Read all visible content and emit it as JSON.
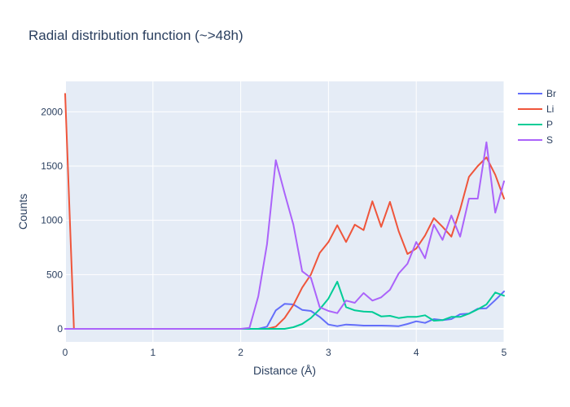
{
  "chart_data": {
    "type": "line",
    "title": "Radial distribution function (~>48h)",
    "xlabel": "Distance (Å)",
    "ylabel": "Counts",
    "xlim": [
      0,
      5
    ],
    "ylim": [
      -120,
      2280
    ],
    "x_ticks": [
      0,
      1,
      2,
      3,
      4,
      5
    ],
    "y_ticks": [
      0,
      500,
      1000,
      1500,
      2000
    ],
    "grid": true,
    "legend_position": "top-right",
    "series": [
      {
        "name": "Br",
        "color": "#636efa",
        "points": [
          [
            0,
            0
          ],
          [
            0.1,
            0
          ],
          [
            1,
            0
          ],
          [
            2,
            0
          ],
          [
            2.1,
            0
          ],
          [
            2.2,
            0
          ],
          [
            2.3,
            20
          ],
          [
            2.4,
            170
          ],
          [
            2.5,
            230
          ],
          [
            2.6,
            225
          ],
          [
            2.7,
            175
          ],
          [
            2.8,
            165
          ],
          [
            2.9,
            110
          ],
          [
            3.0,
            40
          ],
          [
            3.1,
            25
          ],
          [
            3.2,
            40
          ],
          [
            3.3,
            35
          ],
          [
            3.4,
            30
          ],
          [
            3.5,
            30
          ],
          [
            3.6,
            30
          ],
          [
            3.7,
            28
          ],
          [
            3.8,
            25
          ],
          [
            3.9,
            45
          ],
          [
            4.0,
            70
          ],
          [
            4.1,
            55
          ],
          [
            4.2,
            90
          ],
          [
            4.3,
            80
          ],
          [
            4.4,
            90
          ],
          [
            4.5,
            135
          ],
          [
            4.6,
            140
          ],
          [
            4.7,
            185
          ],
          [
            4.8,
            190
          ],
          [
            4.9,
            265
          ],
          [
            5.0,
            345
          ]
        ]
      },
      {
        "name": "Li",
        "color": "#ef553b",
        "points": [
          [
            0,
            2165
          ],
          [
            0.1,
            0
          ],
          [
            1,
            0
          ],
          [
            2,
            0
          ],
          [
            2.1,
            0
          ],
          [
            2.2,
            0
          ],
          [
            2.3,
            0
          ],
          [
            2.4,
            20
          ],
          [
            2.5,
            100
          ],
          [
            2.6,
            220
          ],
          [
            2.7,
            380
          ],
          [
            2.8,
            500
          ],
          [
            2.9,
            700
          ],
          [
            3.0,
            800
          ],
          [
            3.1,
            955
          ],
          [
            3.2,
            800
          ],
          [
            3.3,
            960
          ],
          [
            3.4,
            910
          ],
          [
            3.5,
            1175
          ],
          [
            3.6,
            940
          ],
          [
            3.7,
            1170
          ],
          [
            3.8,
            900
          ],
          [
            3.9,
            690
          ],
          [
            4.0,
            740
          ],
          [
            4.1,
            860
          ],
          [
            4.2,
            1020
          ],
          [
            4.3,
            940
          ],
          [
            4.4,
            850
          ],
          [
            4.5,
            1100
          ],
          [
            4.6,
            1400
          ],
          [
            4.7,
            1500
          ],
          [
            4.8,
            1580
          ],
          [
            4.9,
            1420
          ],
          [
            5.0,
            1200
          ]
        ]
      },
      {
        "name": "P",
        "color": "#00cc96",
        "points": [
          [
            0,
            0
          ],
          [
            0.1,
            0
          ],
          [
            1,
            0
          ],
          [
            2,
            0
          ],
          [
            2.1,
            0
          ],
          [
            2.2,
            0
          ],
          [
            2.3,
            0
          ],
          [
            2.4,
            0
          ],
          [
            2.5,
            0
          ],
          [
            2.6,
            15
          ],
          [
            2.7,
            45
          ],
          [
            2.8,
            100
          ],
          [
            2.9,
            180
          ],
          [
            3.0,
            280
          ],
          [
            3.1,
            435
          ],
          [
            3.2,
            200
          ],
          [
            3.3,
            170
          ],
          [
            3.4,
            160
          ],
          [
            3.5,
            155
          ],
          [
            3.6,
            115
          ],
          [
            3.7,
            120
          ],
          [
            3.8,
            100
          ],
          [
            3.9,
            110
          ],
          [
            4.0,
            110
          ],
          [
            4.1,
            125
          ],
          [
            4.2,
            75
          ],
          [
            4.3,
            80
          ],
          [
            4.4,
            110
          ],
          [
            4.5,
            110
          ],
          [
            4.6,
            140
          ],
          [
            4.7,
            180
          ],
          [
            4.8,
            225
          ],
          [
            4.9,
            335
          ],
          [
            5.0,
            305
          ]
        ]
      },
      {
        "name": "S",
        "color": "#ab63fa",
        "points": [
          [
            0,
            0
          ],
          [
            0.1,
            0
          ],
          [
            1,
            0
          ],
          [
            2,
            0
          ],
          [
            2.1,
            10
          ],
          [
            2.2,
            300
          ],
          [
            2.3,
            780
          ],
          [
            2.4,
            1555
          ],
          [
            2.5,
            1250
          ],
          [
            2.6,
            960
          ],
          [
            2.7,
            530
          ],
          [
            2.8,
            470
          ],
          [
            2.9,
            200
          ],
          [
            3.0,
            165
          ],
          [
            3.1,
            145
          ],
          [
            3.2,
            260
          ],
          [
            3.3,
            240
          ],
          [
            3.4,
            330
          ],
          [
            3.5,
            260
          ],
          [
            3.6,
            290
          ],
          [
            3.7,
            360
          ],
          [
            3.8,
            510
          ],
          [
            3.9,
            600
          ],
          [
            4.0,
            800
          ],
          [
            4.1,
            650
          ],
          [
            4.2,
            960
          ],
          [
            4.3,
            820
          ],
          [
            4.4,
            1045
          ],
          [
            4.5,
            850
          ],
          [
            4.6,
            1200
          ],
          [
            4.7,
            1200
          ],
          [
            4.8,
            1720
          ],
          [
            4.9,
            1070
          ],
          [
            5.0,
            1360
          ]
        ]
      }
    ]
  }
}
